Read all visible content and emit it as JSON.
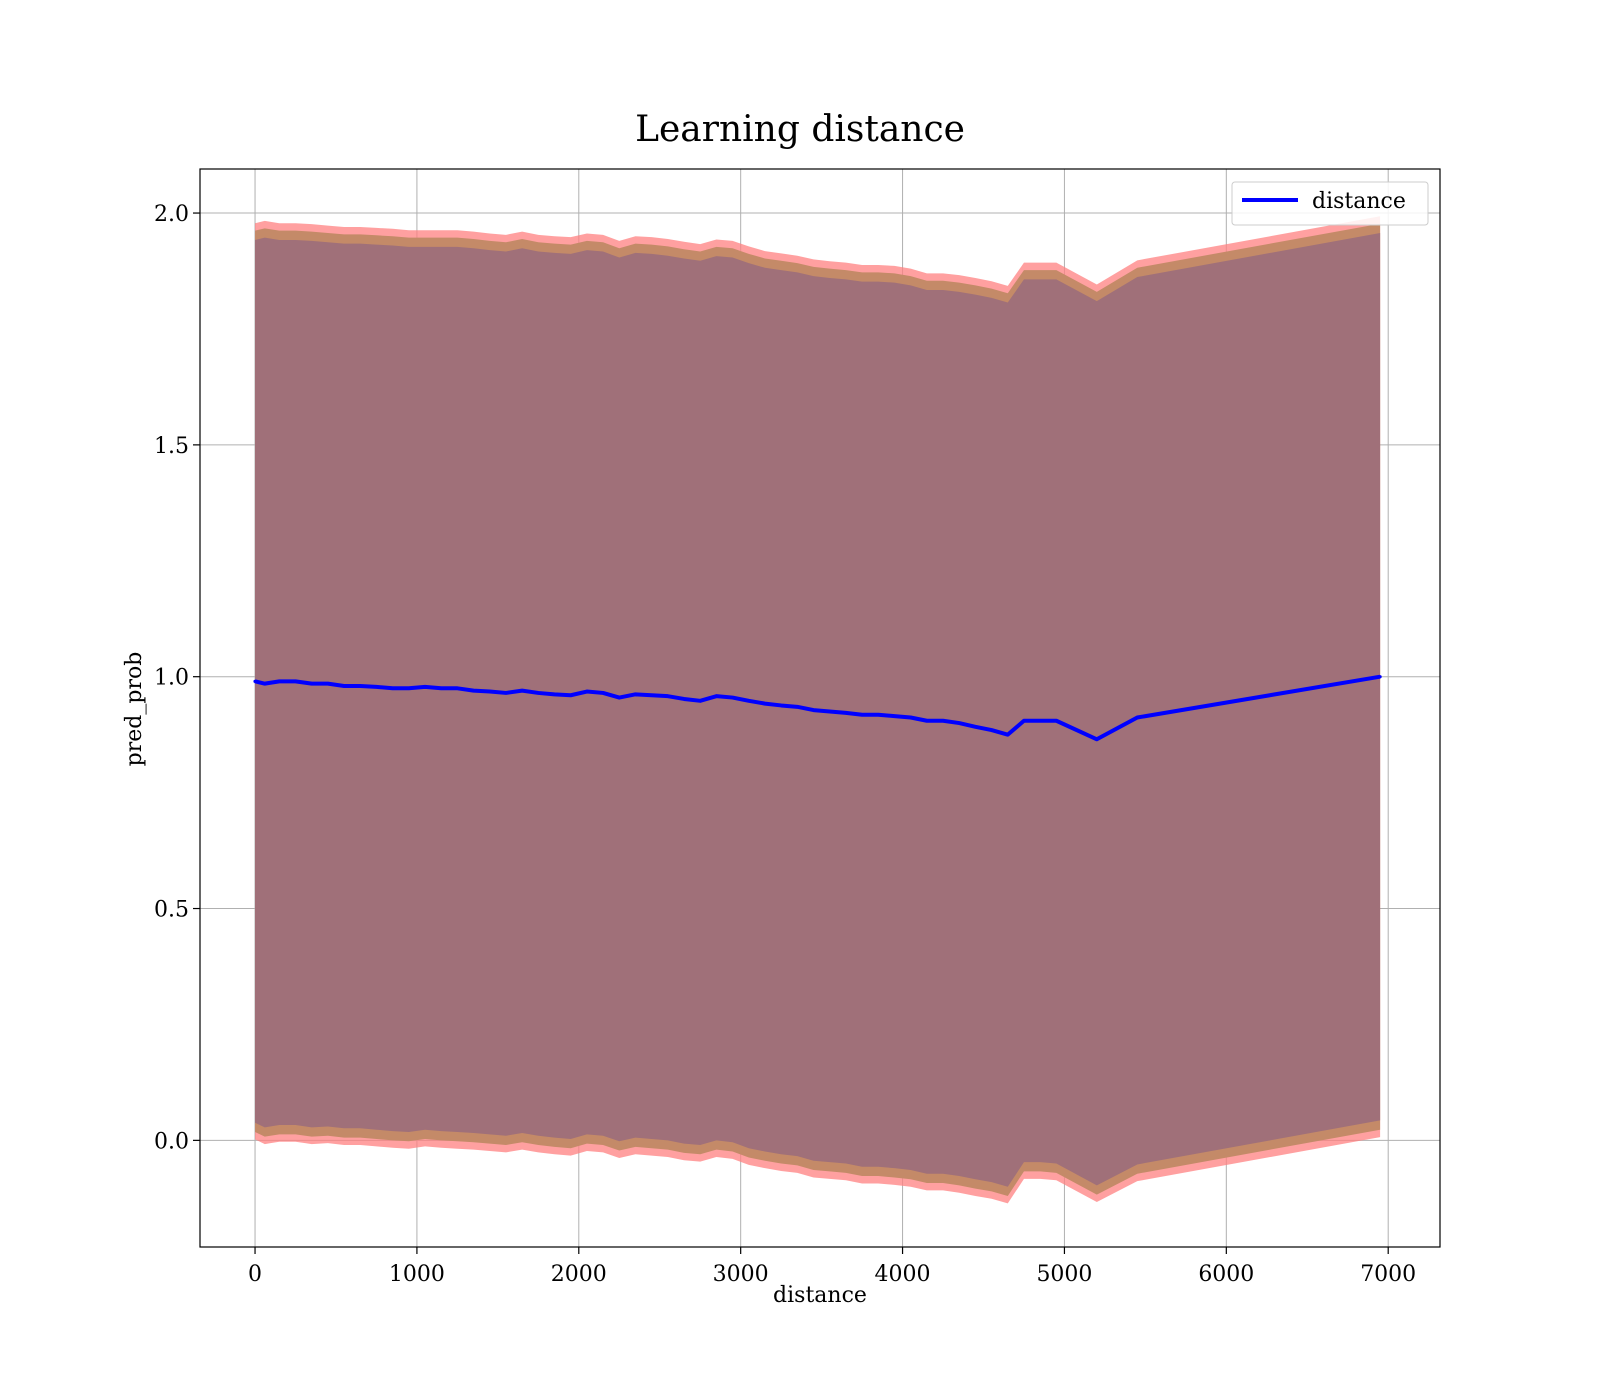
{
  "chart_data": {
    "type": "line",
    "title": "Learning distance",
    "xlabel": "distance",
    "ylabel": "pred_prob",
    "xlim": [
      -340,
      7320
    ],
    "ylim": [
      -0.23,
      2.095
    ],
    "xticks": [
      0,
      1000,
      2000,
      3000,
      4000,
      5000,
      6000,
      7000
    ],
    "xtick_labels": [
      "0",
      "1000",
      "2000",
      "3000",
      "4000",
      "5000",
      "6000",
      "7000"
    ],
    "yticks": [
      0.0,
      0.5,
      1.0,
      1.5,
      2.0
    ],
    "ytick_labels": [
      "0.0",
      "0.5",
      "1.0",
      "1.5",
      "2.0"
    ],
    "grid": true,
    "legend_position": "top-right",
    "series": [
      {
        "name": "distance",
        "color": "#0000ff",
        "x": [
          0,
          60,
          150,
          250,
          350,
          450,
          550,
          650,
          750,
          850,
          950,
          1050,
          1150,
          1250,
          1350,
          1450,
          1550,
          1650,
          1750,
          1850,
          1950,
          2050,
          2150,
          2250,
          2350,
          2450,
          2550,
          2650,
          2750,
          2850,
          2950,
          3050,
          3150,
          3250,
          3350,
          3450,
          3550,
          3650,
          3750,
          3850,
          3950,
          4050,
          4150,
          4250,
          4350,
          4450,
          4550,
          4650,
          4750,
          4850,
          4950,
          5200,
          5450,
          6950
        ],
        "y": [
          0.99,
          0.985,
          0.99,
          0.99,
          0.985,
          0.985,
          0.98,
          0.98,
          0.978,
          0.975,
          0.975,
          0.978,
          0.975,
          0.975,
          0.97,
          0.968,
          0.965,
          0.97,
          0.965,
          0.962,
          0.96,
          0.968,
          0.965,
          0.955,
          0.962,
          0.96,
          0.958,
          0.952,
          0.948,
          0.958,
          0.955,
          0.948,
          0.942,
          0.938,
          0.935,
          0.928,
          0.925,
          0.922,
          0.918,
          0.918,
          0.915,
          0.912,
          0.905,
          0.905,
          0.9,
          0.892,
          0.885,
          0.875,
          0.905,
          0.905,
          0.905,
          0.865,
          0.912,
          1.0
        ],
        "band_outer_upper": [
          1.97,
          1.975,
          1.97,
          1.97,
          1.968,
          1.965,
          1.962,
          1.962,
          1.96,
          1.958,
          1.955,
          1.955,
          1.955,
          1.955,
          1.952,
          1.948,
          1.945,
          1.952,
          1.945,
          1.942,
          1.94,
          1.948,
          1.945,
          1.932,
          1.942,
          1.94,
          1.936,
          1.93,
          1.925,
          1.935,
          1.932,
          1.92,
          1.91,
          1.905,
          1.9,
          1.892,
          1.888,
          1.885,
          1.88,
          1.88,
          1.878,
          1.872,
          1.862,
          1.862,
          1.858,
          1.852,
          1.845,
          1.835,
          1.885,
          1.885,
          1.885,
          1.838,
          1.89,
          1.985
        ],
        "band_outer_lower": [
          0.01,
          0.0,
          0.005,
          0.005,
          0.0,
          0.002,
          -0.002,
          -0.002,
          -0.005,
          -0.008,
          -0.01,
          -0.005,
          -0.008,
          -0.01,
          -0.012,
          -0.015,
          -0.018,
          -0.012,
          -0.018,
          -0.022,
          -0.025,
          -0.015,
          -0.018,
          -0.03,
          -0.022,
          -0.025,
          -0.028,
          -0.035,
          -0.038,
          -0.028,
          -0.032,
          -0.045,
          -0.052,
          -0.058,
          -0.062,
          -0.072,
          -0.075,
          -0.078,
          -0.085,
          -0.085,
          -0.088,
          -0.092,
          -0.1,
          -0.1,
          -0.105,
          -0.112,
          -0.118,
          -0.128,
          -0.075,
          -0.075,
          -0.078,
          -0.125,
          -0.08,
          0.015
        ]
      }
    ]
  }
}
